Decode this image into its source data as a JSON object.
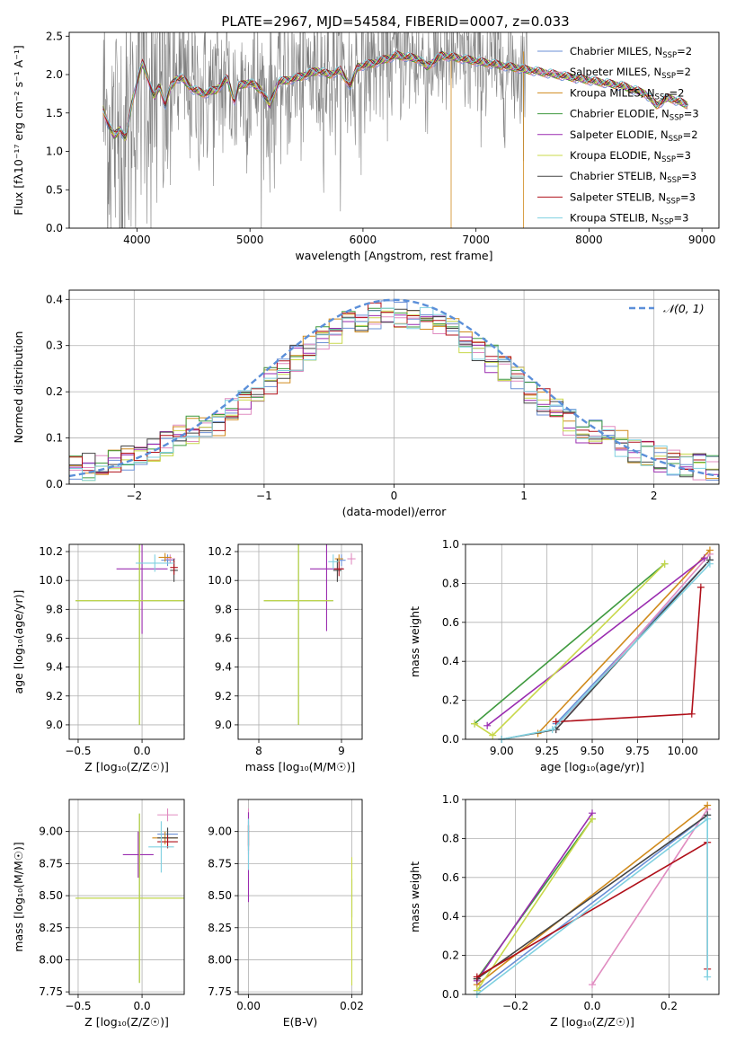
{
  "figure_title": "PLATE=2967, MJD=54584, FIBERID=0007, z=0.033",
  "model_colors": {
    "Chabrier MILES": "#6a8fd6",
    "Salpeter MILES": "#e08cc0",
    "Kroupa MILES": "#d08a1c",
    "Chabrier ELODIE": "#3f9a3f",
    "Salpeter ELODIE": "#9a2cb0",
    "Kroupa ELODIE": "#c8d84a",
    "Chabrier STELIB": "#444444",
    "Salpeter STELIB": "#b0101a",
    "Kroupa STELIB": "#7fd0e0"
  },
  "chart_data": [
    {
      "id": "spectrum",
      "type": "line",
      "title": "PLATE=2967, MJD=54584, FIBERID=0007, z=0.033",
      "xlabel": "wavelength [Angstrom, rest frame]",
      "ylabel": "Flux [fλ10⁻¹⁷ erg cm⁻² s⁻¹ A⁻¹]",
      "xlim": [
        3400,
        9150
      ],
      "ylim": [
        0,
        2.55
      ],
      "xticks": [
        4000,
        5000,
        6000,
        7000,
        8000,
        9000
      ],
      "yticks": [
        0.0,
        0.5,
        1.0,
        1.5,
        2.0,
        2.5
      ],
      "grid": false,
      "legend_position": "top-right",
      "legend": [
        "Chabrier MILES, N_SSP=2",
        "Salpeter MILES, N_SSP=2",
        "Kroupa MILES, N_SSP=2",
        "Chabrier ELODIE, N_SSP=3",
        "Salpeter ELODIE, N_SSP=2",
        "Kroupa ELODIE, N_SSP=3",
        "Chabrier STELIB, N_SSP=3",
        "Salpeter STELIB, N_SSP=3",
        "Kroupa STELIB, N_SSP=3"
      ],
      "data_series": {
        "name": "data",
        "color": "#808080",
        "x_range": [
          3700,
          8880
        ]
      },
      "model_curve_points": [
        [
          3700,
          1.55
        ],
        [
          3760,
          1.3
        ],
        [
          3800,
          1.2
        ],
        [
          3850,
          1.3
        ],
        [
          3900,
          1.15
        ],
        [
          3950,
          1.6
        ],
        [
          4000,
          1.9
        ],
        [
          4050,
          2.15
        ],
        [
          4100,
          1.95
        ],
        [
          4150,
          1.7
        ],
        [
          4200,
          1.85
        ],
        [
          4250,
          1.6
        ],
        [
          4300,
          1.85
        ],
        [
          4350,
          1.95
        ],
        [
          4400,
          1.95
        ],
        [
          4500,
          1.8
        ],
        [
          4600,
          1.75
        ],
        [
          4700,
          1.8
        ],
        [
          4800,
          1.95
        ],
        [
          4861,
          1.65
        ],
        [
          4900,
          1.85
        ],
        [
          5000,
          1.9
        ],
        [
          5100,
          1.8
        ],
        [
          5175,
          1.6
        ],
        [
          5250,
          1.9
        ],
        [
          5400,
          1.95
        ],
        [
          5500,
          2.0
        ],
        [
          5600,
          2.05
        ],
        [
          5700,
          2.0
        ],
        [
          5800,
          2.05
        ],
        [
          5890,
          1.85
        ],
        [
          5950,
          2.1
        ],
        [
          6100,
          2.15
        ],
        [
          6300,
          2.25
        ],
        [
          6500,
          2.2
        ],
        [
          6563,
          2.1
        ],
        [
          6700,
          2.25
        ],
        [
          6900,
          2.2
        ],
        [
          7100,
          2.15
        ],
        [
          7300,
          2.1
        ],
        [
          7500,
          2.05
        ],
        [
          7700,
          2.0
        ],
        [
          7900,
          1.95
        ],
        [
          8100,
          1.9
        ],
        [
          8300,
          1.85
        ],
        [
          8500,
          1.75
        ],
        [
          8600,
          1.6
        ],
        [
          8700,
          1.7
        ],
        [
          8880,
          1.6
        ]
      ]
    },
    {
      "id": "residuals",
      "type": "line",
      "xlabel": "(data-model)/error",
      "ylabel": "Normed distribution",
      "xlim": [
        -2.5,
        2.5
      ],
      "ylim": [
        0,
        0.42
      ],
      "xticks": [
        -2,
        -1,
        0,
        1,
        2
      ],
      "yticks": [
        0.0,
        0.1,
        0.2,
        0.3,
        0.4
      ],
      "grid": true,
      "legend_position": "top-right",
      "legend": [
        "𝒩(0, 1)"
      ],
      "reference_curve": {
        "name": "𝒩(0, 1)",
        "mean": 0,
        "sigma": 1,
        "style": "dashed",
        "color": "#5b8fd9"
      }
    },
    {
      "id": "age_vs_Z",
      "type": "scatter",
      "xlabel": "Z [log₁₀(Z/Z☉)]",
      "ylabel": "age  [log₁₀(age/yr)]",
      "xlim": [
        -0.57,
        0.33
      ],
      "ylim": [
        8.9,
        10.25
      ],
      "xticks": [
        -0.5,
        0.0
      ],
      "yticks": [
        9.0,
        9.2,
        9.4,
        9.6,
        9.8,
        10.0,
        10.2
      ],
      "grid": true,
      "errorbars": [
        {
          "model": "Chabrier MILES",
          "x": 0.2,
          "y": 10.14,
          "xerr": 0.05,
          "yerr": 0.04
        },
        {
          "model": "Salpeter MILES",
          "x": 0.22,
          "y": 10.15,
          "xerr": 0.04,
          "yerr": 0.03
        },
        {
          "model": "Kroupa MILES",
          "x": 0.18,
          "y": 10.16,
          "xerr": 0.05,
          "yerr": 0.03
        },
        {
          "model": "Chabrier ELODIE",
          "x": -0.02,
          "y": 9.86,
          "xerr": 0.5,
          "yerr": 0.86
        },
        {
          "model": "Salpeter ELODIE",
          "x": 0.0,
          "y": 10.08,
          "xerr": 0.2,
          "yerr": 0.45
        },
        {
          "model": "Kroupa ELODIE",
          "x": -0.02,
          "y": 9.86,
          "xerr": 0.5,
          "yerr": 0.86
        },
        {
          "model": "Chabrier STELIB",
          "x": 0.25,
          "y": 10.07,
          "xerr": 0.03,
          "yerr": 0.08
        },
        {
          "model": "Salpeter STELIB",
          "x": 0.25,
          "y": 10.09,
          "xerr": 0.03,
          "yerr": 0.05
        },
        {
          "model": "Kroupa STELIB",
          "x": 0.1,
          "y": 10.12,
          "xerr": 0.15,
          "yerr": 0.06
        }
      ]
    },
    {
      "id": "age_vs_mass",
      "type": "scatter",
      "xlabel": "mass [log₁₀(M/M☉)]",
      "ylabel": "",
      "xlim": [
        7.75,
        9.25
      ],
      "ylim": [
        8.9,
        10.25
      ],
      "xticks": [
        8,
        9
      ],
      "yticks": [
        9.0,
        9.2,
        9.4,
        9.6,
        9.8,
        10.0,
        10.2
      ],
      "grid": true,
      "errorbars": [
        {
          "model": "Chabrier MILES",
          "x": 9.0,
          "y": 10.14,
          "xerr": 0.05,
          "yerr": 0.04
        },
        {
          "model": "Salpeter MILES",
          "x": 9.12,
          "y": 10.15,
          "xerr": 0.05,
          "yerr": 0.04
        },
        {
          "model": "Kroupa MILES",
          "x": 8.97,
          "y": 10.15,
          "xerr": 0.05,
          "yerr": 0.03
        },
        {
          "model": "Chabrier ELODIE",
          "x": 8.48,
          "y": 9.86,
          "xerr": 0.42,
          "yerr": 0.86
        },
        {
          "model": "Salpeter ELODIE",
          "x": 8.82,
          "y": 10.08,
          "xerr": 0.2,
          "yerr": 0.43
        },
        {
          "model": "Kroupa ELODIE",
          "x": 8.48,
          "y": 9.86,
          "xerr": 0.42,
          "yerr": 0.86
        },
        {
          "model": "Chabrier STELIB",
          "x": 8.95,
          "y": 10.07,
          "xerr": 0.05,
          "yerr": 0.08
        },
        {
          "model": "Salpeter STELIB",
          "x": 8.97,
          "y": 10.08,
          "xerr": 0.06,
          "yerr": 0.05
        },
        {
          "model": "Kroupa STELIB",
          "x": 8.9,
          "y": 10.13,
          "xerr": 0.06,
          "yerr": 0.05
        }
      ]
    },
    {
      "id": "weight_vs_age",
      "type": "line",
      "xlabel": "age  [log₁₀(age/yr)]",
      "ylabel": "mass weight",
      "xlim": [
        8.8,
        10.2
      ],
      "ylim": [
        0.0,
        1.0
      ],
      "xticks": [
        9.0,
        9.25,
        9.5,
        9.75,
        10.0
      ],
      "yticks": [
        0.0,
        0.2,
        0.4,
        0.6,
        0.8,
        1.0
      ],
      "grid": true,
      "series": [
        {
          "name": "Chabrier MILES",
          "x": [
            9.3,
            10.15
          ],
          "y": [
            0.08,
            0.92
          ]
        },
        {
          "name": "Salpeter MILES",
          "x": [
            9.3,
            10.15
          ],
          "y": [
            0.05,
            0.95
          ]
        },
        {
          "name": "Kroupa MILES",
          "x": [
            9.2,
            10.15
          ],
          "y": [
            0.03,
            0.97
          ]
        },
        {
          "name": "Chabrier ELODIE",
          "x": [
            8.85,
            9.9
          ],
          "y": [
            0.08,
            0.9
          ]
        },
        {
          "name": "Salpeter ELODIE",
          "x": [
            8.92,
            10.12
          ],
          "y": [
            0.07,
            0.93
          ]
        },
        {
          "name": "Kroupa ELODIE",
          "x": [
            8.85,
            8.95,
            9.9
          ],
          "y": [
            0.08,
            0.02,
            0.9
          ]
        },
        {
          "name": "Chabrier STELIB",
          "x": [
            9.0,
            9.3,
            10.15
          ],
          "y": [
            0.0,
            0.05,
            0.92
          ]
        },
        {
          "name": "Salpeter STELIB",
          "x": [
            9.3,
            10.05,
            10.1
          ],
          "y": [
            0.09,
            0.13,
            0.78
          ]
        },
        {
          "name": "Kroupa STELIB",
          "x": [
            9.0,
            9.28,
            10.15
          ],
          "y": [
            0.0,
            0.05,
            0.9
          ]
        }
      ]
    },
    {
      "id": "mass_vs_Z",
      "type": "scatter",
      "xlabel": "Z [log₁₀(Z/Z☉)]",
      "ylabel": "mass [log₁₀(M/M☉)]",
      "xlim": [
        -0.57,
        0.33
      ],
      "ylim": [
        7.73,
        9.25
      ],
      "xticks": [
        -0.5,
        0.0
      ],
      "yticks": [
        7.75,
        8.0,
        8.25,
        8.5,
        8.75,
        9.0
      ],
      "grid": true,
      "errorbars": [
        {
          "model": "Chabrier MILES",
          "x": 0.2,
          "y": 8.98,
          "xerr": 0.08,
          "yerr": 0.05
        },
        {
          "model": "Salpeter MILES",
          "x": 0.2,
          "y": 9.13,
          "xerr": 0.08,
          "yerr": 0.05
        },
        {
          "model": "Kroupa MILES",
          "x": 0.18,
          "y": 8.95,
          "xerr": 0.1,
          "yerr": 0.05
        },
        {
          "model": "Chabrier ELODIE",
          "x": -0.02,
          "y": 8.48,
          "xerr": 0.5,
          "yerr": 0.66
        },
        {
          "model": "Salpeter ELODIE",
          "x": -0.03,
          "y": 8.82,
          "xerr": 0.12,
          "yerr": 0.18
        },
        {
          "model": "Kroupa ELODIE",
          "x": -0.02,
          "y": 8.48,
          "xerr": 0.5,
          "yerr": 0.66
        },
        {
          "model": "Chabrier STELIB",
          "x": 0.2,
          "y": 8.95,
          "xerr": 0.08,
          "yerr": 0.08
        },
        {
          "model": "Salpeter STELIB",
          "x": 0.2,
          "y": 8.92,
          "xerr": 0.08,
          "yerr": 0.05
        },
        {
          "model": "Kroupa STELIB",
          "x": 0.15,
          "y": 8.88,
          "xerr": 0.1,
          "yerr": 0.2
        }
      ]
    },
    {
      "id": "mass_vs_ebv",
      "type": "scatter",
      "xlabel": "E(B-V)",
      "ylabel": "",
      "xlim": [
        -0.002,
        0.022
      ],
      "ylim": [
        7.73,
        9.25
      ],
      "xticks": [
        0.0,
        0.02
      ],
      "yticks": [
        7.75,
        8.0,
        8.25,
        8.5,
        8.75,
        9.0
      ],
      "grid": true,
      "errorbars": [
        {
          "model": "Chabrier MILES",
          "x": 0.0,
          "y": 8.98,
          "xerr": 0.0,
          "yerr": 0.1
        },
        {
          "model": "Salpeter MILES",
          "x": 0.0,
          "y": 9.0,
          "xerr": 0.0,
          "yerr": 0.18
        },
        {
          "model": "Kroupa MILES",
          "x": 0.0,
          "y": 8.97,
          "xerr": 0.0,
          "yerr": 0.08
        },
        {
          "model": "Chabrier ELODIE",
          "x": 0.02,
          "y": 8.48,
          "xerr": 0.0,
          "yerr": 0.15
        },
        {
          "model": "Salpeter ELODIE",
          "x": 0.0,
          "y": 8.8,
          "xerr": 0.0,
          "yerr": 0.35
        },
        {
          "model": "Kroupa ELODIE",
          "x": 0.02,
          "y": 8.3,
          "xerr": 0.0,
          "yerr": 0.5
        },
        {
          "model": "Chabrier STELIB",
          "x": 0.0,
          "y": 8.95,
          "xerr": 0.0,
          "yerr": 0.1
        },
        {
          "model": "Salpeter STELIB",
          "x": 0.0,
          "y": 8.97,
          "xerr": 0.0,
          "yerr": 0.08
        },
        {
          "model": "Kroupa STELIB",
          "x": 0.0,
          "y": 8.9,
          "xerr": 0.0,
          "yerr": 0.2
        }
      ]
    },
    {
      "id": "weight_vs_Z",
      "type": "line",
      "xlabel": "Z [log₁₀(Z/Z☉)]",
      "ylabel": "mass weight",
      "xlim": [
        -0.33,
        0.33
      ],
      "ylim": [
        0.0,
        1.0
      ],
      "xticks": [
        -0.2,
        0.0,
        0.2
      ],
      "yticks": [
        0.0,
        0.2,
        0.4,
        0.6,
        0.8,
        1.0
      ],
      "grid": true,
      "series": [
        {
          "name": "Chabrier MILES",
          "x": [
            -0.3,
            0.3
          ],
          "y": [
            0.02,
            0.92
          ]
        },
        {
          "name": "Salpeter MILES",
          "x": [
            0.0,
            0.3
          ],
          "y": [
            0.05,
            0.95
          ]
        },
        {
          "name": "Kroupa MILES",
          "x": [
            -0.3,
            0.3
          ],
          "y": [
            0.05,
            0.97
          ]
        },
        {
          "name": "Chabrier ELODIE",
          "x": [
            -0.3,
            0.0
          ],
          "y": [
            0.08,
            0.9
          ]
        },
        {
          "name": "Salpeter ELODIE",
          "x": [
            -0.3,
            0.0
          ],
          "y": [
            0.07,
            0.93
          ]
        },
        {
          "name": "Kroupa ELODIE",
          "x": [
            -0.3,
            0.0
          ],
          "y": [
            0.02,
            0.9
          ]
        },
        {
          "name": "Chabrier STELIB",
          "x": [
            -0.3,
            0.3
          ],
          "y": [
            0.08,
            0.92
          ]
        },
        {
          "name": "Salpeter STELIB",
          "x": [
            -0.3,
            0.3,
            0.3
          ],
          "y": [
            0.09,
            0.78,
            0.13
          ]
        },
        {
          "name": "Kroupa STELIB",
          "x": [
            -0.3,
            0.3,
            0.3
          ],
          "y": [
            0.0,
            0.9,
            0.09
          ]
        }
      ]
    }
  ]
}
